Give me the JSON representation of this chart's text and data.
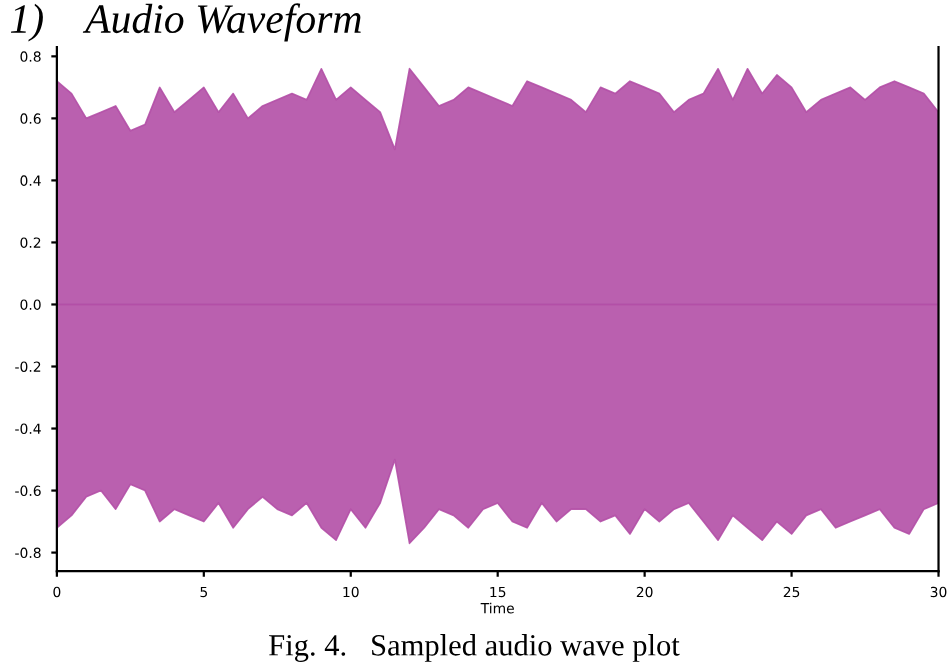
{
  "chart_data": {
    "type": "area",
    "title": "1)    Audio Waveform",
    "xlabel": "Time",
    "annotations": [
      "Fig. 4.   Sampled audio wave plot"
    ],
    "x": [
      0,
      0.5,
      1,
      1.5,
      2,
      2.5,
      3,
      3.5,
      4,
      4.5,
      5,
      5.5,
      6,
      6.5,
      7,
      7.5,
      8,
      8.5,
      9,
      9.5,
      10,
      10.5,
      11,
      11.5,
      12,
      12.5,
      13,
      13.5,
      14,
      14.5,
      15,
      15.5,
      16,
      16.5,
      17,
      17.5,
      18,
      18.5,
      19,
      19.5,
      20,
      20.5,
      21,
      21.5,
      22,
      22.5,
      23,
      23.5,
      24,
      24.5,
      25,
      25.5,
      26,
      26.5,
      27,
      27.5,
      28,
      28.5,
      29,
      29.5,
      30
    ],
    "series": [
      {
        "color": "#b24fa6",
        "values": [
          0.72,
          0.68,
          0.6,
          0.62,
          0.64,
          0.56,
          0.58,
          0.7,
          0.62,
          0.66,
          0.7,
          0.62,
          0.68,
          0.6,
          0.64,
          0.66,
          0.68,
          0.66,
          0.76,
          0.66,
          0.7,
          0.66,
          0.62,
          0.5,
          0.76,
          0.7,
          0.64,
          0.66,
          0.7,
          0.68,
          0.66,
          0.64,
          0.72,
          0.7,
          0.68,
          0.66,
          0.62,
          0.7,
          0.68,
          0.72,
          0.7,
          0.68,
          0.62,
          0.66,
          0.68,
          0.76,
          0.66,
          0.76,
          0.68,
          0.74,
          0.7,
          0.62,
          0.66,
          0.68,
          0.7,
          0.66,
          0.7,
          0.72,
          0.7,
          0.68,
          0.62
        ]
      },
      {
        "color": "#b24fa6",
        "values": [
          -0.72,
          -0.68,
          -0.62,
          -0.6,
          -0.66,
          -0.58,
          -0.6,
          -0.7,
          -0.66,
          -0.68,
          -0.7,
          -0.64,
          -0.72,
          -0.66,
          -0.62,
          -0.66,
          -0.68,
          -0.64,
          -0.72,
          -0.76,
          -0.66,
          -0.72,
          -0.64,
          -0.5,
          -0.77,
          -0.72,
          -0.66,
          -0.68,
          -0.72,
          -0.66,
          -0.64,
          -0.7,
          -0.72,
          -0.64,
          -0.7,
          -0.66,
          -0.66,
          -0.7,
          -0.68,
          -0.74,
          -0.66,
          -0.7,
          -0.66,
          -0.64,
          -0.7,
          -0.76,
          -0.68,
          -0.72,
          -0.76,
          -0.7,
          -0.74,
          -0.68,
          -0.66,
          -0.72,
          -0.7,
          -0.68,
          -0.66,
          -0.72,
          -0.74,
          -0.66,
          -0.64
        ]
      }
    ],
    "xlim": [
      0,
      30
    ],
    "ylim": [
      -0.86,
      0.83
    ],
    "xticks": [
      0,
      5,
      10,
      15,
      20,
      25,
      30
    ],
    "yticks": [
      -0.8,
      -0.6,
      -0.4,
      -0.2,
      {
        "value": 0,
        "label": "0.0"
      },
      0.2,
      0.4,
      0.6,
      0.8
    ],
    "grid": false,
    "legend": false
  }
}
